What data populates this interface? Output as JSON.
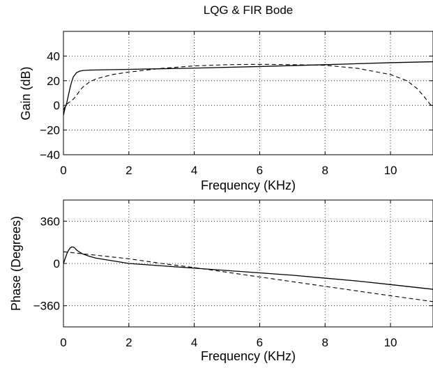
{
  "chart_data": [
    {
      "type": "line",
      "title": "LQG & FIR Bode",
      "xlabel": "Frequency  (KHz)",
      "ylabel": "Gain  (dB)",
      "xlim": [
        0,
        11.3
      ],
      "ylim": [
        -40,
        60
      ],
      "xticks": [
        "0",
        "2",
        "4",
        "6",
        "8",
        "10"
      ],
      "yticks": [
        "−40",
        "−20",
        "0",
        "20",
        "40"
      ],
      "grid": true,
      "series": [
        {
          "style": "solid",
          "x": [
            0,
            0.05,
            0.1,
            0.15,
            0.2,
            0.25,
            0.3,
            0.4,
            0.5,
            0.6,
            0.8,
            1,
            2,
            4,
            6,
            8,
            10,
            11.3
          ],
          "y": [
            -8,
            -2,
            2,
            8,
            14,
            19,
            23,
            26.5,
            27.8,
            28.3,
            28.6,
            28.7,
            29.2,
            30.2,
            31.5,
            33,
            34.6,
            35.4
          ]
        },
        {
          "style": "dashed",
          "x": [
            0,
            0.05,
            0.1,
            0.2,
            0.3,
            0.4,
            0.5,
            0.6,
            0.8,
            1,
            1.5,
            2,
            3,
            4,
            5,
            6,
            7,
            8,
            9,
            10,
            10.5,
            10.8,
            11,
            11.15,
            11.3
          ],
          "y": [
            -4,
            -1,
            1,
            3,
            5,
            8,
            12,
            15,
            19,
            21.5,
            25,
            27,
            30,
            32,
            33,
            33.3,
            33,
            32.5,
            30,
            25,
            20,
            14,
            8,
            3,
            -2
          ]
        }
      ]
    },
    {
      "type": "line",
      "title": "",
      "xlabel": "Frequency  (KHz)",
      "ylabel": "Phase  (Degrees)",
      "xlim": [
        0,
        11.3
      ],
      "ylim": [
        -540,
        540
      ],
      "xticks": [
        "0",
        "2",
        "4",
        "6",
        "8",
        "10"
      ],
      "yticks": [
        "−360",
        "0",
        "360"
      ],
      "grid": true,
      "series": [
        {
          "style": "solid",
          "x": [
            0,
            0.05,
            0.1,
            0.15,
            0.2,
            0.25,
            0.3,
            0.35,
            0.4,
            0.5,
            0.6,
            0.8,
            1,
            2,
            3,
            4,
            5,
            6,
            7,
            8,
            9,
            10,
            11.3
          ],
          "y": [
            0,
            40,
            80,
            110,
            130,
            140,
            140,
            130,
            115,
            95,
            80,
            60,
            45,
            0,
            -20,
            -40,
            -60,
            -80,
            -100,
            -125,
            -150,
            -180,
            -220
          ]
        },
        {
          "style": "dashed",
          "x": [
            0,
            0.5,
            1,
            2,
            3,
            4,
            5,
            6,
            7,
            8,
            9,
            10,
            11.3
          ],
          "y": [
            100,
            85,
            70,
            40,
            0,
            -35,
            -75,
            -115,
            -155,
            -195,
            -235,
            -275,
            -325
          ]
        }
      ]
    }
  ]
}
